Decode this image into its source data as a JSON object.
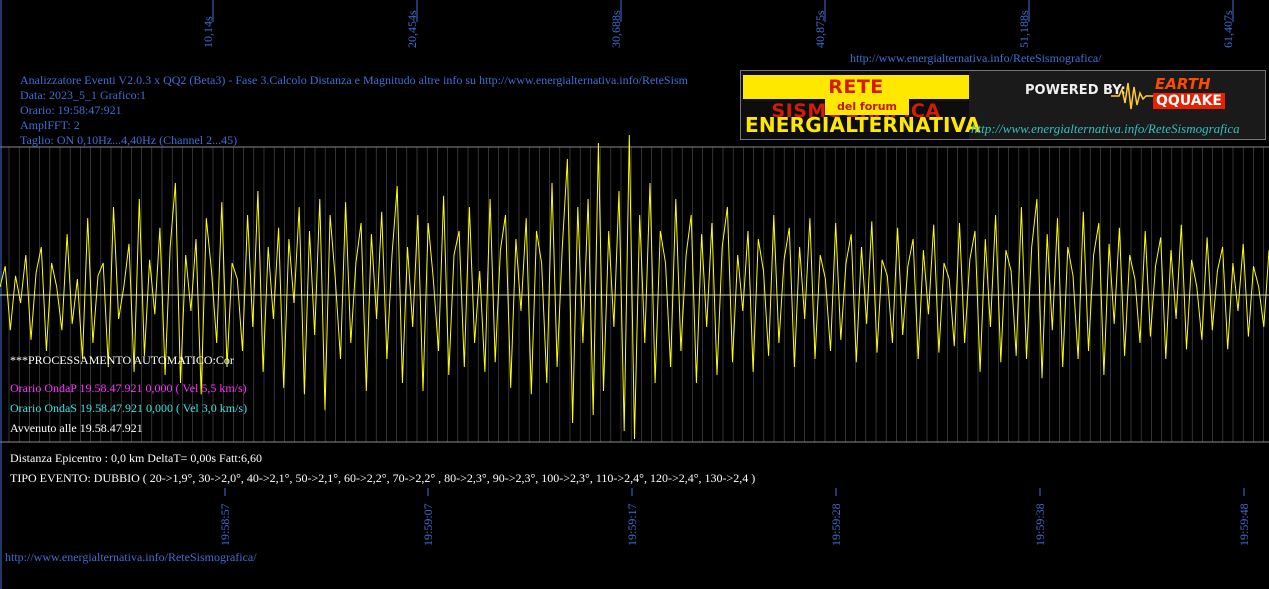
{
  "colors": {
    "background": "#000000",
    "trace": "#ffff00",
    "grid": "#555555",
    "axis_text": "#3f6fd4"
  },
  "header": {
    "top_url": "http://www.energialternativa.info/ReteSismografica/",
    "line1": "Analizzatore Eventi V2.0.3 x QQ2 (Beta3) - Fase 3.Calcolo Distanza e Magnitudo altre info su http://www.energialternativa.info/ReteSism",
    "line2": "Data: 2023_5_1 Grafico:1",
    "line3": "Orario: 19:58:47:921",
    "line4": "AmplFFT: 2",
    "line5": "Taglio: ON 0,10Hz...4,40Hz      (Channel 2...45)"
  },
  "logo": {
    "rete": "RETE SISMOGRAFICA",
    "forum": "del forum",
    "energ": "ENERGIALTERNATIVA",
    "powered": "POWERED BY:",
    "earth": "EARTH",
    "qquake": "QQUAKE",
    "url": "http://www.energialternativa.info/ReteSismografica"
  },
  "overlay": {
    "processing": "***PROCESSAMENTO AUTOMATICO:Cor",
    "onda_p": "Orario OndaP 19.58.47.921  0,000 ( Vel 5,5 km/s)",
    "onda_s": "Orario OndaS 19.58.47.921  0,000 ( Vel 3,0 km/s)",
    "avvenuto": "Avvenuto alle 19.58.47.921"
  },
  "footer": {
    "distanza": "Distanza Epicentro : 0,0 km DeltaT= 0,00s  Fatt:6,60",
    "tipo": "TIPO EVENTO: DUBBIO ( 20->1,9°, 30->2,0°, 40->2,1°, 50->2,1°, 60->2,2°, 70->2,2° , 80->2,3°, 90->2,3°, 100->2,3°, 110->2,4°, 120->2,4°, 130->2,4 )",
    "bottom_url": "http://www.energialternativa.info/ReteSismografica/"
  },
  "chart_data": {
    "type": "line",
    "top_ticks": [
      "10,14s",
      "20,454s",
      "30,688s",
      "40,875s",
      "51,188s",
      "61,407s"
    ],
    "bottom_ticks": [
      "19:58:57",
      "19:59:07",
      "19:59:17",
      "19:59:28",
      "19:59:38",
      "19:59:48"
    ],
    "ylim": [
      -1,
      1
    ],
    "grid": true,
    "series": [
      {
        "values": [
          0.05,
          0.18,
          -0.22,
          0.12,
          -0.05,
          0.25,
          -0.28,
          0.14,
          0.3,
          -0.35,
          0.2,
          0.05,
          -0.22,
          0.38,
          -0.18,
          0.1,
          -0.4,
          0.48,
          -0.3,
          0.12,
          0.2,
          -0.45,
          0.55,
          -0.15,
          0.05,
          0.32,
          -0.48,
          0.6,
          -0.38,
          0.22,
          -0.12,
          0.42,
          -0.5,
          0.3,
          0.7,
          -0.55,
          0.25,
          -0.1,
          0.35,
          -0.62,
          0.48,
          0.15,
          -0.3,
          0.58,
          -0.45,
          0.2,
          0.1,
          -0.35,
          0.5,
          -0.2,
          0.65,
          -0.48,
          0.3,
          -0.15,
          0.42,
          -0.58,
          0.35,
          -0.05,
          0.55,
          -0.62,
          0.4,
          -0.25,
          0.6,
          -0.72,
          0.5,
          0.1,
          -0.4,
          0.58,
          -0.3,
          0.2,
          0.45,
          -0.6,
          0.38,
          -0.15,
          0.52,
          -0.4,
          0.25,
          0.68,
          -0.55,
          0.3,
          -0.2,
          0.5,
          -0.6,
          0.45,
          0.1,
          -0.35,
          0.62,
          -0.5,
          0.25,
          0.4,
          -0.45,
          0.55,
          -0.3,
          0.15,
          -0.48,
          0.6,
          -0.42,
          0.28,
          0.5,
          -0.58,
          0.35,
          -0.1,
          0.48,
          -0.62,
          0.4,
          0.2,
          -0.55,
          0.7,
          -0.45,
          0.3,
          0.85,
          -0.8,
          0.55,
          -0.3,
          0.6,
          -0.75,
          0.95,
          -0.6,
          0.4,
          -0.2,
          0.65,
          -0.85,
          1.0,
          -0.9,
          0.5,
          -0.3,
          0.7,
          -0.55,
          0.4,
          0.2,
          -0.45,
          0.6,
          -0.35,
          0.25,
          0.5,
          -0.55,
          0.38,
          -0.2,
          0.45,
          -0.5,
          0.3,
          0.55,
          -0.42,
          0.25,
          -0.1,
          0.4,
          -0.48,
          0.35,
          0.15,
          -0.38,
          0.5,
          -0.3,
          0.22,
          0.42,
          -0.45,
          0.3,
          -0.15,
          0.48,
          -0.4,
          0.25,
          0.1,
          -0.35,
          0.45,
          -0.28,
          0.2,
          0.38,
          -0.42,
          0.3,
          -0.18,
          0.46,
          -0.36,
          0.22,
          0.12,
          -0.3,
          0.42,
          -0.25,
          0.18,
          0.35,
          -0.4,
          0.28,
          -0.12,
          0.44,
          -0.36,
          0.2,
          0.1,
          -0.32,
          0.45,
          -0.3,
          0.22,
          0.4,
          -0.48,
          0.35,
          -0.2,
          0.5,
          -0.42,
          0.28,
          0.15,
          -0.38,
          0.55,
          -0.4,
          0.3,
          0.6,
          -0.52,
          0.38,
          -0.22,
          0.48,
          -0.45,
          0.3,
          0.12,
          -0.4,
          0.52,
          -0.35,
          0.25,
          0.45,
          -0.5,
          0.32,
          -0.18,
          0.42,
          -0.38,
          0.25,
          0.1,
          -0.3,
          0.4,
          -0.26,
          0.18,
          0.36,
          -0.4,
          0.28,
          -0.15,
          0.44,
          -0.34,
          0.22,
          0.05,
          -0.28,
          0.36,
          -0.22,
          0.15,
          0.3,
          -0.34,
          0.2,
          -0.1,
          0.32,
          -0.26,
          0.18,
          0.05,
          -0.2,
          0.28
        ],
        "color": "#ffff00"
      }
    ]
  }
}
